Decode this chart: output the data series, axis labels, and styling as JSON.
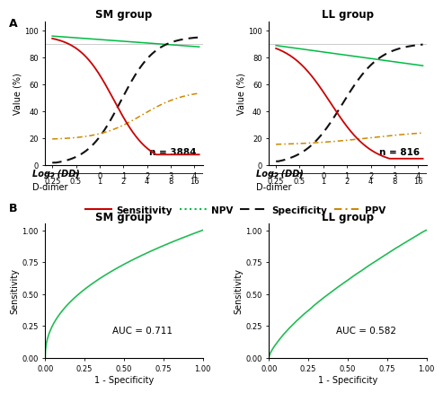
{
  "title_A_left": "SM group",
  "title_A_right": "LL group",
  "title_B_left": "SM group",
  "title_B_right": "LL group",
  "n_left": "n = 3884",
  "n_right": "n = 816",
  "auc_left": "AUC = 0.711",
  "auc_right": "AUC = 0.582",
  "ylabel_A": "Value (%)",
  "ylabel_B": "Sensitivity",
  "xlabel_B": "1 - Specificity",
  "xaxis_log2_label": "Log₂ (DD)",
  "xaxis_ddimer_label": "D-dimer",
  "log2_ticks": [
    -2,
    -1,
    0,
    1,
    2,
    3,
    4
  ],
  "ddimer_ticks": [
    "0.25",
    "0.5",
    "1",
    "2",
    "4",
    "8",
    "16"
  ],
  "color_sensitivity": "#cc0000",
  "color_npv": "#00bb44",
  "color_specificity": "#111111",
  "color_ppv": "#cc8800",
  "color_roc": "#22bb55",
  "bg_color": "#ffffff",
  "panel_label_A": "A",
  "panel_label_B": "B",
  "hline_value": 90,
  "title_fontsize": 8.5,
  "label_fontsize": 7,
  "tick_fontsize": 6,
  "legend_fontsize": 7.5,
  "annot_fontsize": 7.5
}
